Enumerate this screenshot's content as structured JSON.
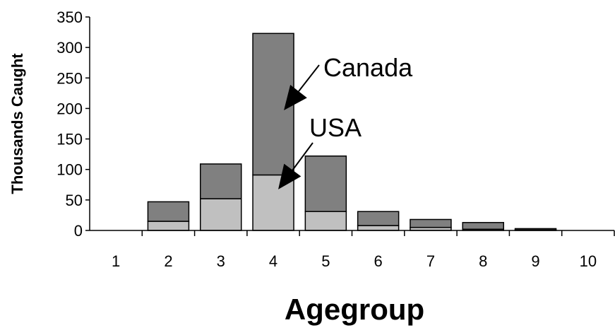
{
  "chart_data": {
    "type": "bar",
    "stacked": true,
    "title": "",
    "xlabel": "Agegroup",
    "ylabel": "Thousands Caught",
    "ylim": [
      0,
      350
    ],
    "yticks": [
      0,
      50,
      100,
      150,
      200,
      250,
      300,
      350
    ],
    "grid": false,
    "categories": [
      "1",
      "2",
      "3",
      "4",
      "5",
      "6",
      "7",
      "8",
      "9",
      "10"
    ],
    "series": [
      {
        "name": "USA",
        "color": "#c0c0c0",
        "values": [
          0,
          15,
          52,
          91,
          31,
          8,
          5,
          2,
          1,
          0
        ]
      },
      {
        "name": "Canada",
        "color": "#808080",
        "values": [
          0,
          32,
          57,
          232,
          91,
          23,
          13,
          11,
          2,
          0
        ]
      }
    ],
    "annotations": [
      {
        "text": "Canada",
        "points_to": "Canada",
        "category": "4"
      },
      {
        "text": "USA",
        "points_to": "USA",
        "category": "4"
      }
    ]
  }
}
